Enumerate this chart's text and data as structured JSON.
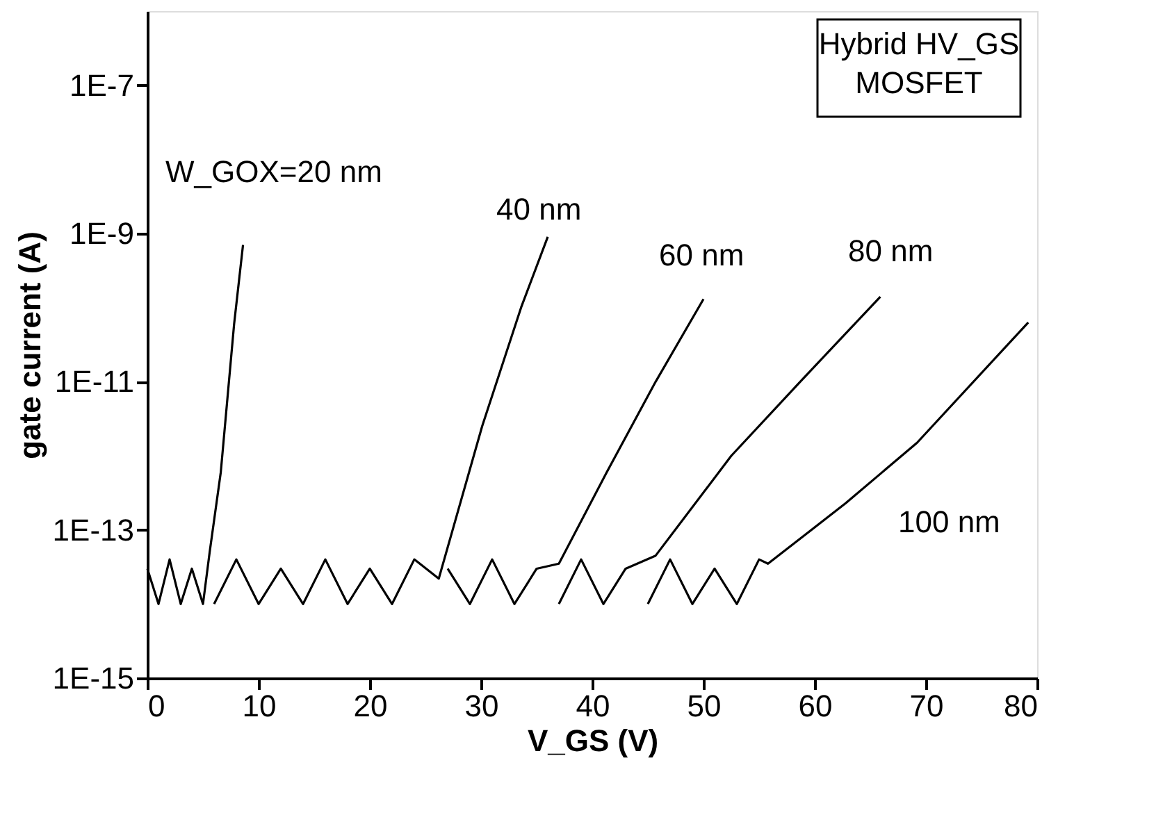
{
  "chart_data": {
    "type": "line",
    "xlabel": "V_GS (V)",
    "ylabel": "gate current (A)",
    "xlim": [
      0,
      80
    ],
    "xticks": [
      0,
      10,
      20,
      30,
      40,
      50,
      60,
      70,
      80
    ],
    "ylim": [
      1e-15,
      1e-06
    ],
    "yticks": [
      {
        "value": 1e-15,
        "label": "1E-15"
      },
      {
        "value": 1e-13,
        "label": "1E-13"
      },
      {
        "value": 1e-11,
        "label": "1E-11"
      },
      {
        "value": 1e-09,
        "label": "1E-9"
      },
      {
        "value": 1e-07,
        "label": "1E-7"
      }
    ],
    "log": "y",
    "grid": false,
    "marker": "none",
    "line_style": "solid",
    "series": [
      {
        "color": "#000000",
        "x": [
          0,
          1,
          2,
          3,
          4,
          5,
          5.6,
          6.6,
          7.8,
          8.6
        ],
        "values": [
          3e-14,
          1e-14,
          4e-14,
          1e-14,
          3e-14,
          1e-14,
          5e-14,
          6e-13,
          6e-11,
          7e-10
        ]
      },
      {
        "color": "#000000",
        "x": [
          6,
          8,
          10,
          12,
          14,
          16,
          18,
          20,
          22,
          24,
          26.2,
          30.1,
          33.6,
          36.0
        ],
        "values": [
          1e-14,
          4e-14,
          1e-14,
          3e-14,
          1e-14,
          4e-14,
          1e-14,
          3e-14,
          1e-14,
          4e-14,
          2.2e-14,
          2.5e-12,
          1e-10,
          9e-10
        ]
      },
      {
        "color": "#000000",
        "x": [
          27,
          29,
          31,
          33,
          35,
          37.0,
          41.3,
          45.7,
          50.0
        ],
        "values": [
          3e-14,
          1e-14,
          4e-14,
          1e-14,
          3e-14,
          3.5e-14,
          6e-13,
          1e-11,
          1.3e-10
        ]
      },
      {
        "color": "#000000",
        "x": [
          37,
          39,
          41,
          43,
          45.7,
          52.5,
          58.7,
          65.9
        ],
        "values": [
          1e-14,
          4e-14,
          1e-14,
          3e-14,
          4.5e-14,
          1e-12,
          1e-11,
          1.4e-10
        ]
      },
      {
        "color": "#000000",
        "x": [
          45,
          47,
          49,
          51,
          53,
          55,
          55.8,
          62.8,
          69.2,
          79.2
        ],
        "values": [
          1e-14,
          4e-14,
          1e-14,
          3e-14,
          1e-14,
          4e-14,
          3.5e-14,
          2.3e-13,
          1.5e-12,
          6.3e-11
        ]
      }
    ],
    "annotations": [
      "W_GOX=20 nm",
      "40 nm",
      "60 nm",
      "80 nm",
      "100 nm",
      "Hybrid HV_GS\nMOSFET"
    ]
  }
}
